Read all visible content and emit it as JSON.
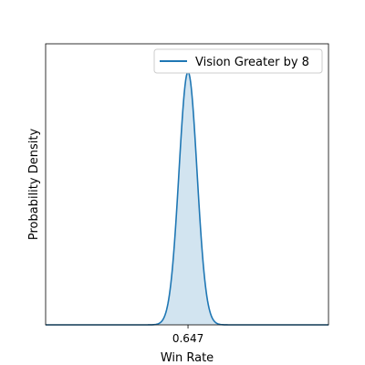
{
  "chart_data": {
    "type": "area",
    "title": "",
    "xlabel": "Win Rate",
    "ylabel": "Probability Density",
    "xlim": [
      0.497,
      0.795
    ],
    "ylim": [
      0,
      1.0
    ],
    "x_ticks": [
      0.647
    ],
    "x_tick_labels": [
      "0.647"
    ],
    "y_ticks": [],
    "grid": false,
    "legend": "upper right",
    "colors": {
      "line": "#1f77b4",
      "fill": "#1f77b4",
      "axes": "#000000"
    },
    "series": [
      {
        "name": "Vision Greater by 8",
        "distribution": "normal",
        "mean": 0.647,
        "std": 0.0095,
        "peak_density_fraction": 0.9
      }
    ]
  }
}
